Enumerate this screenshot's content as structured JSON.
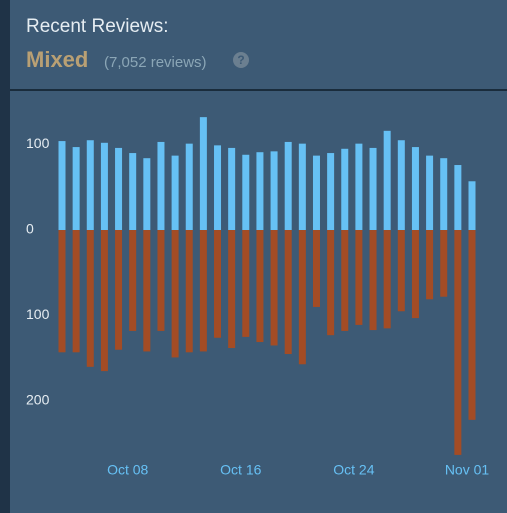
{
  "header": {
    "title": "Recent Reviews:",
    "rating": "Mixed",
    "count": "(7,052 reviews)",
    "help_icon": "?"
  },
  "chart_data": {
    "type": "bar",
    "categories": [
      null,
      null,
      null,
      null,
      null,
      "Oct 08",
      null,
      null,
      null,
      null,
      null,
      null,
      null,
      "Oct 16",
      null,
      null,
      null,
      null,
      null,
      null,
      null,
      "Oct 24",
      null,
      null,
      null,
      null,
      null,
      null,
      null,
      "Nov 01"
    ],
    "series": [
      {
        "color": "#66c0f4",
        "values": [
          104,
          97,
          105,
          102,
          96,
          90,
          84,
          103,
          87,
          101,
          132,
          99,
          96,
          88,
          91,
          92,
          103,
          101,
          87,
          90,
          95,
          101,
          96,
          116,
          105,
          97,
          87,
          84,
          76,
          57
        ]
      },
      {
        "color": "#a34c25",
        "values": [
          -143,
          -143,
          -160,
          -165,
          -140,
          -118,
          -142,
          -118,
          -149,
          -143,
          -142,
          -126,
          -138,
          -125,
          -131,
          -135,
          -145,
          -157,
          -90,
          -123,
          -118,
          -111,
          -117,
          -115,
          -95,
          -103,
          -81,
          -78,
          -263,
          -222
        ]
      }
    ],
    "ylim": [
      -270,
      160
    ],
    "yticks": [
      {
        "value": 100,
        "label": "100"
      },
      0,
      {
        "value": -100,
        "label": "100"
      },
      {
        "value": -200,
        "label": "200"
      }
    ]
  }
}
